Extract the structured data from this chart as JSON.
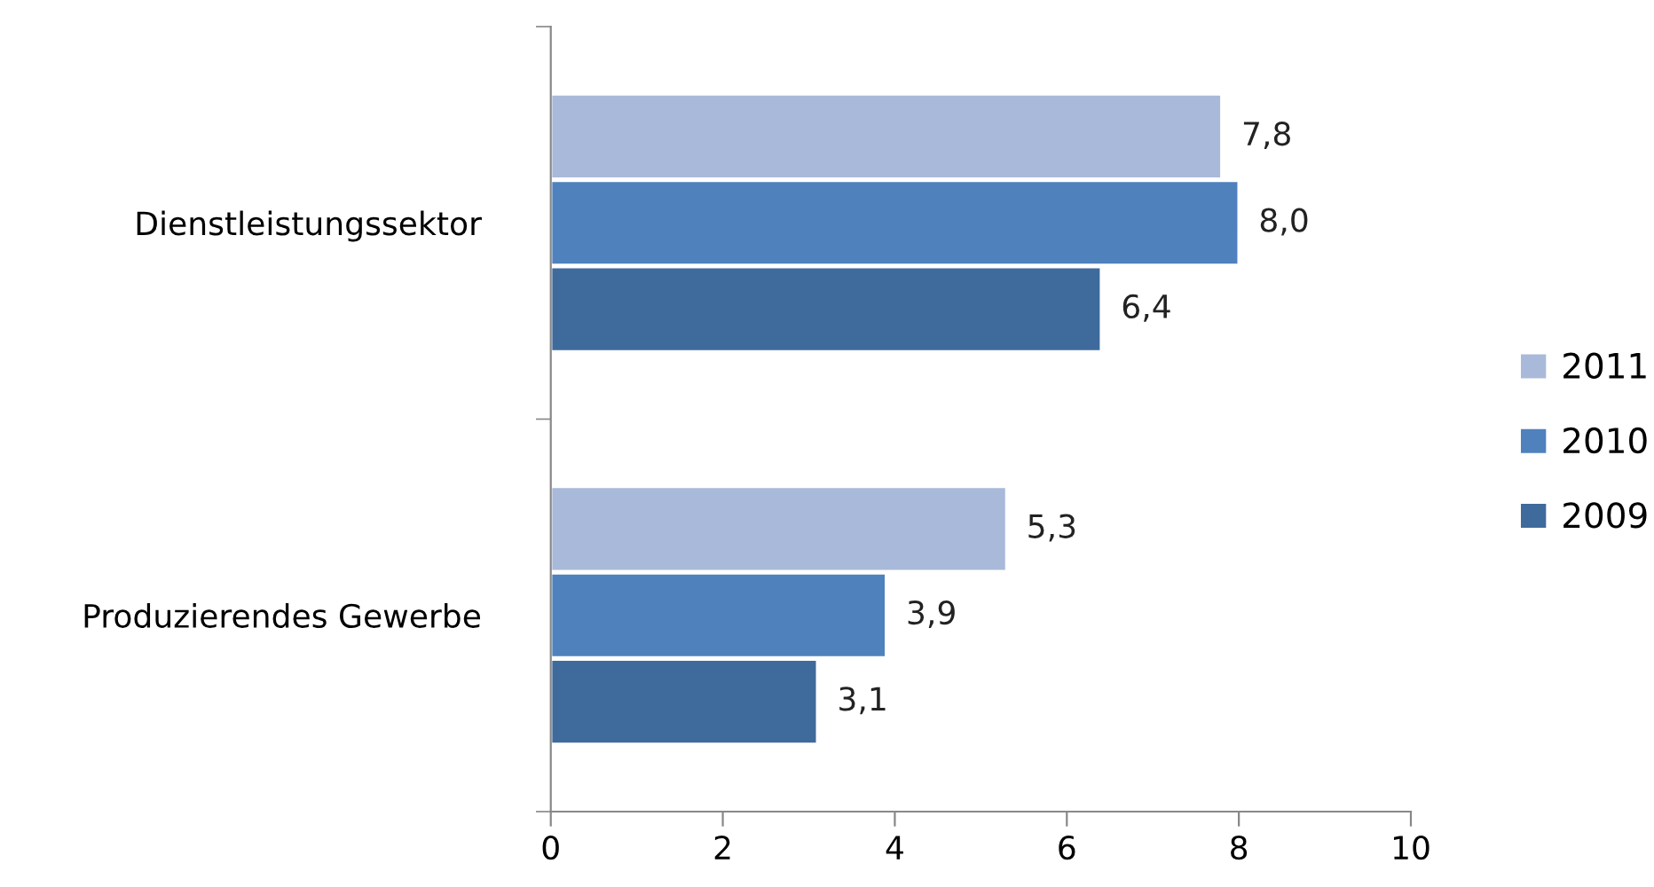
{
  "chart_data": {
    "type": "bar",
    "orientation": "horizontal",
    "categories": [
      "Dienstleistungssektor",
      "Produzierendes Gewerbe"
    ],
    "series": [
      {
        "name": "2011",
        "color": "#a9b9d9",
        "values": [
          7.8,
          5.3
        ],
        "value_labels": [
          "7,8",
          "5,3"
        ]
      },
      {
        "name": "2010",
        "color": "#4f81bd",
        "values": [
          8.0,
          3.9
        ],
        "value_labels": [
          "8,0",
          "3,9"
        ]
      },
      {
        "name": "2009",
        "color": "#3f6a9c",
        "values": [
          6.4,
          3.1
        ],
        "value_labels": [
          "6,4",
          "3,1"
        ]
      }
    ],
    "xlim": [
      0,
      10
    ],
    "xticks": [
      0,
      2,
      4,
      6,
      8,
      10
    ],
    "grid": false,
    "legend": "right"
  }
}
